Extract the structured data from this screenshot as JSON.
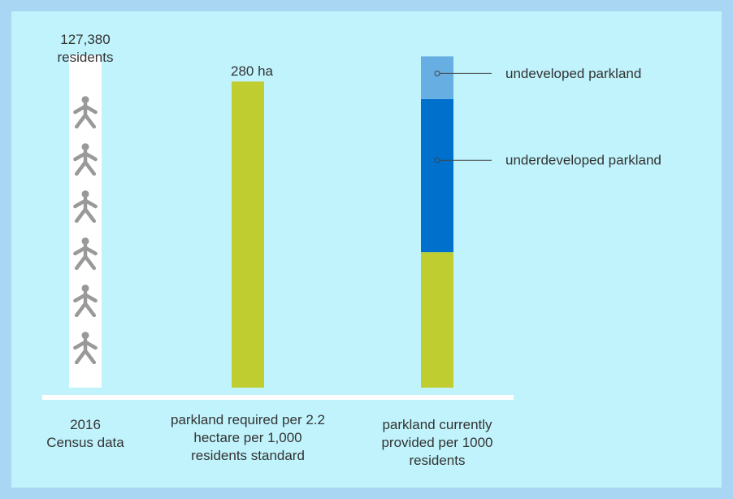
{
  "chart_data": {
    "type": "bar",
    "categories": [
      "2016 Census data",
      "parkland required per 2.2 hectare per 1,000 residents standard",
      "parkland currently provided per 1000 residents"
    ],
    "pictograph_label": "127,380 residents",
    "series": [
      {
        "color": "#c0cd30",
        "values": [
          null,
          280,
          124
        ],
        "value_labels": [
          null,
          "280 ha",
          null
        ]
      },
      {
        "name": "underdeveloped parkland",
        "color": "#0070cd",
        "values": [
          null,
          null,
          140
        ]
      },
      {
        "name": "undeveloped parkland",
        "color": "#67aee2",
        "values": [
          null,
          null,
          39
        ]
      }
    ],
    "ylim": [
      0,
      310
    ]
  }
}
